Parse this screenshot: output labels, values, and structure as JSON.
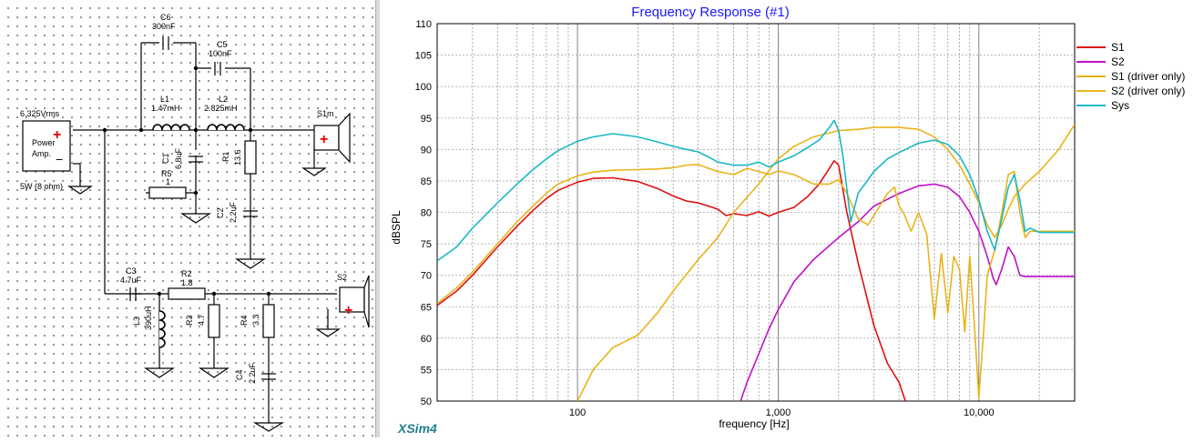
{
  "schematic": {
    "source": {
      "voltage": "6.325Vrms",
      "label_line1": "Power",
      "label_line2": "Amp.",
      "rating": "5W (8 ohm)",
      "plus": "+",
      "minus": "−"
    },
    "components": {
      "C6": {
        "name": "C6",
        "value": "300nF"
      },
      "C5": {
        "name": "C5",
        "value": "100nF"
      },
      "L1": {
        "name": "L1",
        "value": "1.47mH"
      },
      "L2": {
        "name": "L2",
        "value": "2.825mH"
      },
      "C1": {
        "name": "C1",
        "value": "6.8uF"
      },
      "R1": {
        "name": "R1",
        "value": "13.6"
      },
      "R5": {
        "name": "R5",
        "value": "1"
      },
      "C2": {
        "name": "C2",
        "value": "2.2uF"
      },
      "C3": {
        "name": "C3",
        "value": "4.7uF"
      },
      "R2": {
        "name": "R2",
        "value": "1.8"
      },
      "L3": {
        "name": "L3",
        "value": "390uH"
      },
      "R3": {
        "name": "R3",
        "value": "4.7"
      },
      "R4": {
        "name": "R4",
        "value": "3.3"
      },
      "C4": {
        "name": "C4",
        "value": "2.2uF"
      }
    },
    "speakers": {
      "s1": "S1m",
      "s2": "S2"
    }
  },
  "graph": {
    "brand": "XSim4",
    "colors": {
      "S1": "#dd1111",
      "S2": "#c010c8",
      "S1_driver": "#e8b41a",
      "S2_driver": "#e8b41a",
      "Sys": "#18b8c4",
      "title": "#1a1aff",
      "brand": "#1f7f8f"
    },
    "chart_data": {
      "type": "line",
      "title": "Frequency Response (#1)",
      "xlabel": "frequency [Hz]",
      "ylabel": "dBSPL",
      "x_scale": "log",
      "xlim": [
        20,
        30000
      ],
      "ylim": [
        50,
        110
      ],
      "x_ticks": [
        {
          "value": 100,
          "label": "100"
        },
        {
          "value": 1000,
          "label": "1,000"
        },
        {
          "value": 10000,
          "label": "10,000"
        }
      ],
      "y_ticks": [
        50,
        55,
        60,
        65,
        70,
        75,
        80,
        85,
        90,
        95,
        100,
        105,
        110
      ],
      "grid": true,
      "legend_position": "right",
      "series": [
        {
          "name": "S1",
          "points": [
            [
              20,
              65.2
            ],
            [
              25,
              67.5
            ],
            [
              30,
              70
            ],
            [
              40,
              74.5
            ],
            [
              50,
              77.8
            ],
            [
              60,
              80.3
            ],
            [
              70,
              82.2
            ],
            [
              80,
              83.5
            ],
            [
              100,
              84.8
            ],
            [
              120,
              85.4
            ],
            [
              150,
              85.5
            ],
            [
              200,
              84.9
            ],
            [
              250,
              83.8
            ],
            [
              300,
              82.6
            ],
            [
              350,
              81.8
            ],
            [
              400,
              81.5
            ],
            [
              450,
              81
            ],
            [
              500,
              80.5
            ],
            [
              550,
              79.5
            ],
            [
              600,
              79.8
            ],
            [
              700,
              79.5
            ],
            [
              800,
              80.1
            ],
            [
              900,
              79.4
            ],
            [
              1000,
              80
            ],
            [
              1200,
              80.8
            ],
            [
              1400,
              82.5
            ],
            [
              1600,
              84.5
            ],
            [
              1800,
              87
            ],
            [
              1900,
              88.2
            ],
            [
              2000,
              87.5
            ],
            [
              2200,
              80
            ],
            [
              2500,
              72
            ],
            [
              3000,
              62
            ],
            [
              3500,
              56
            ],
            [
              4000,
              53
            ],
            [
              4300,
              50
            ]
          ]
        },
        {
          "name": "S2",
          "points": [
            [
              650,
              50
            ],
            [
              700,
              53
            ],
            [
              800,
              57.5
            ],
            [
              900,
              61.5
            ],
            [
              1000,
              64.5
            ],
            [
              1200,
              69
            ],
            [
              1500,
              72.5
            ],
            [
              2000,
              76
            ],
            [
              2500,
              78.5
            ],
            [
              3000,
              81
            ],
            [
              4000,
              83
            ],
            [
              5000,
              84.2
            ],
            [
              6000,
              84.5
            ],
            [
              7000,
              84
            ],
            [
              8000,
              82.5
            ],
            [
              9000,
              80
            ],
            [
              10000,
              77
            ],
            [
              11000,
              73
            ],
            [
              11800,
              69.5
            ],
            [
              12200,
              68.5
            ],
            [
              13000,
              71
            ],
            [
              14000,
              74.5
            ],
            [
              15000,
              73
            ],
            [
              16000,
              70
            ],
            [
              17000,
              69.8
            ],
            [
              20000,
              69.8
            ],
            [
              30000,
              69.8
            ]
          ]
        },
        {
          "name": "S1 (driver only)",
          "points": [
            [
              20,
              65.5
            ],
            [
              25,
              68
            ],
            [
              30,
              70.5
            ],
            [
              40,
              75
            ],
            [
              50,
              78.5
            ],
            [
              60,
              81
            ],
            [
              70,
              83
            ],
            [
              80,
              84.5
            ],
            [
              100,
              85.8
            ],
            [
              120,
              86.4
            ],
            [
              150,
              86.7
            ],
            [
              200,
              86.8
            ],
            [
              250,
              86.9
            ],
            [
              300,
              87.1
            ],
            [
              350,
              87.5
            ],
            [
              400,
              87.6
            ],
            [
              450,
              87
            ],
            [
              500,
              86.5
            ],
            [
              600,
              86
            ],
            [
              700,
              87
            ],
            [
              800,
              86.5
            ],
            [
              900,
              86
            ],
            [
              1000,
              86.6
            ],
            [
              1200,
              86
            ],
            [
              1500,
              84.5
            ],
            [
              1800,
              84.5
            ],
            [
              2000,
              85.2
            ],
            [
              2200,
              83
            ],
            [
              2500,
              79
            ],
            [
              2800,
              78
            ],
            [
              3000,
              79.5
            ],
            [
              3500,
              83
            ],
            [
              3800,
              84
            ],
            [
              4000,
              81
            ],
            [
              4200,
              80
            ],
            [
              4600,
              77
            ],
            [
              5000,
              80
            ],
            [
              5500,
              76.5
            ],
            [
              6000,
              63
            ],
            [
              6500,
              73.5
            ],
            [
              7000,
              64
            ],
            [
              7500,
              73
            ],
            [
              8000,
              71
            ],
            [
              8500,
              61
            ],
            [
              9000,
              73
            ],
            [
              9500,
              62
            ],
            [
              10000,
              50.5
            ],
            [
              10500,
              60
            ],
            [
              11000,
              70
            ],
            [
              12000,
              74
            ],
            [
              13000,
              80
            ],
            [
              14000,
              86
            ],
            [
              15000,
              86.5
            ],
            [
              16000,
              80
            ],
            [
              17000,
              76
            ],
            [
              18000,
              77
            ],
            [
              20000,
              77
            ],
            [
              30000,
              77
            ]
          ]
        },
        {
          "name": "S2 (driver only)",
          "points": [
            [
              100,
              50
            ],
            [
              120,
              55
            ],
            [
              150,
              58.5
            ],
            [
              200,
              60.5
            ],
            [
              250,
              64
            ],
            [
              300,
              67.5
            ],
            [
              400,
              72.5
            ],
            [
              500,
              76
            ],
            [
              600,
              80
            ],
            [
              800,
              84.5
            ],
            [
              1000,
              88.5
            ],
            [
              1200,
              90.5
            ],
            [
              1500,
              92
            ],
            [
              2000,
              93
            ],
            [
              2500,
              93.2
            ],
            [
              3000,
              93.5
            ],
            [
              4000,
              93.5
            ],
            [
              5000,
              93.2
            ],
            [
              6000,
              92
            ],
            [
              7000,
              90
            ],
            [
              8000,
              87.5
            ],
            [
              9000,
              84.5
            ],
            [
              10000,
              81.5
            ],
            [
              11000,
              78
            ],
            [
              12000,
              76
            ],
            [
              13000,
              78
            ],
            [
              14000,
              80.5
            ],
            [
              15000,
              82.5
            ],
            [
              17000,
              84.5
            ],
            [
              20000,
              86.5
            ],
            [
              25000,
              90
            ],
            [
              30000,
              94
            ]
          ]
        },
        {
          "name": "Sys",
          "points": [
            [
              20,
              72.3
            ],
            [
              25,
              74.5
            ],
            [
              30,
              77.5
            ],
            [
              40,
              81.5
            ],
            [
              50,
              84.5
            ],
            [
              60,
              86.8
            ],
            [
              70,
              88.5
            ],
            [
              80,
              89.8
            ],
            [
              100,
              91.3
            ],
            [
              120,
              92
            ],
            [
              150,
              92.5
            ],
            [
              200,
              92
            ],
            [
              250,
              91.2
            ],
            [
              300,
              90.5
            ],
            [
              350,
              90
            ],
            [
              400,
              89.6
            ],
            [
              450,
              88.8
            ],
            [
              500,
              88
            ],
            [
              600,
              87.5
            ],
            [
              700,
              87.5
            ],
            [
              800,
              88
            ],
            [
              900,
              87.2
            ],
            [
              1000,
              88
            ],
            [
              1200,
              89
            ],
            [
              1400,
              90.3
            ],
            [
              1600,
              91.5
            ],
            [
              1800,
              93.5
            ],
            [
              1900,
              94.6
            ],
            [
              2000,
              93
            ],
            [
              2100,
              89
            ],
            [
              2300,
              78.5
            ],
            [
              2500,
              83
            ],
            [
              3000,
              86.5
            ],
            [
              3500,
              88.5
            ],
            [
              4000,
              89.5
            ],
            [
              5000,
              91
            ],
            [
              6000,
              91.5
            ],
            [
              7000,
              90.8
            ],
            [
              8000,
              89
            ],
            [
              9000,
              86
            ],
            [
              10000,
              82
            ],
            [
              11000,
              77
            ],
            [
              12000,
              74
            ],
            [
              13000,
              79
            ],
            [
              14000,
              84
            ],
            [
              15000,
              86
            ],
            [
              16000,
              82
            ],
            [
              17000,
              77
            ],
            [
              18000,
              77.5
            ],
            [
              20000,
              76.8
            ],
            [
              30000,
              76.8
            ]
          ]
        }
      ]
    }
  }
}
